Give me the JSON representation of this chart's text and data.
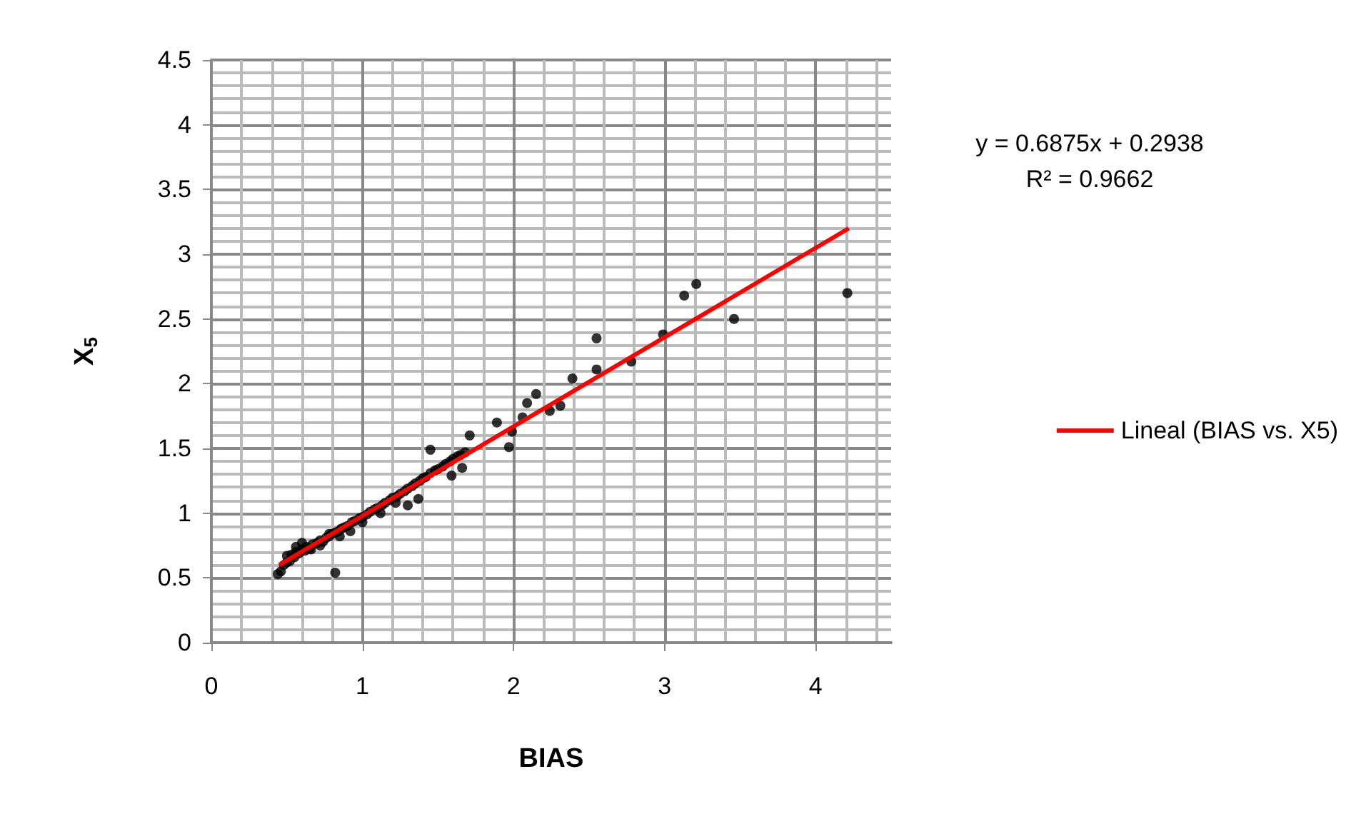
{
  "chart_data": {
    "type": "scatter",
    "xlabel": "BIAS",
    "ylabel": "X$_{5}$",
    "xlim": [
      0,
      4.5
    ],
    "ylim": [
      0,
      4.5
    ],
    "xticks": [
      0,
      1,
      2,
      3,
      4
    ],
    "yticks": [
      0,
      0.5,
      1,
      1.5,
      2,
      2.5,
      3,
      3.5,
      4,
      4.5
    ],
    "grid": true,
    "legend": "right",
    "annotations": [
      "y = 0.6875x + 0.2938",
      "R² = 0.9662"
    ],
    "series": [
      {
        "type": "scatter",
        "marker": "circle",
        "color": "#000000",
        "x": [
          0.44,
          0.46,
          0.48,
          0.5,
          0.52,
          0.53,
          0.55,
          0.56,
          0.58,
          0.6,
          0.62,
          0.63,
          0.65,
          0.67,
          0.7,
          0.72,
          0.74,
          0.76,
          0.78,
          0.8,
          0.82,
          0.84,
          0.86,
          0.88,
          0.9,
          0.93,
          0.95,
          0.98,
          1.0,
          1.03,
          1.05,
          1.08,
          1.1,
          1.13,
          1.15,
          1.18,
          1.2,
          1.23,
          1.25,
          1.28,
          1.3,
          1.33,
          1.35,
          1.38,
          1.4,
          1.42,
          1.45,
          1.48,
          1.5,
          1.53,
          1.55,
          1.58,
          1.6,
          1.63,
          1.65,
          1.68,
          0.5,
          0.56,
          0.6,
          0.66,
          0.72,
          0.78,
          0.85,
          0.92,
          1.0,
          1.12,
          1.22,
          1.3,
          1.37,
          1.45,
          1.59,
          1.66,
          1.71,
          1.97,
          1.89,
          1.99,
          2.06,
          2.09,
          2.15,
          2.24,
          2.31,
          2.39,
          2.55,
          2.55,
          2.78,
          2.99,
          3.13,
          3.21,
          3.46,
          4.21,
          0.82
        ],
        "values": [
          0.53,
          0.55,
          0.6,
          0.62,
          0.63,
          0.68,
          0.66,
          0.7,
          0.69,
          0.72,
          0.71,
          0.74,
          0.73,
          0.76,
          0.77,
          0.79,
          0.78,
          0.81,
          0.82,
          0.84,
          0.85,
          0.86,
          0.88,
          0.89,
          0.9,
          0.93,
          0.94,
          0.96,
          0.97,
          0.99,
          1.01,
          1.03,
          1.04,
          1.06,
          1.08,
          1.1,
          1.12,
          1.13,
          1.15,
          1.17,
          1.19,
          1.21,
          1.23,
          1.25,
          1.27,
          1.28,
          1.31,
          1.33,
          1.34,
          1.36,
          1.38,
          1.4,
          1.42,
          1.44,
          1.45,
          1.47,
          0.67,
          0.74,
          0.77,
          0.72,
          0.75,
          0.84,
          0.82,
          0.86,
          0.93,
          1.0,
          1.08,
          1.06,
          1.11,
          1.49,
          1.29,
          1.35,
          1.6,
          1.51,
          1.7,
          1.63,
          1.74,
          1.85,
          1.92,
          1.79,
          1.83,
          2.04,
          2.35,
          2.11,
          2.17,
          2.38,
          2.68,
          2.77,
          2.5,
          2.7,
          0.54
        ]
      },
      {
        "type": "line",
        "marker": "none",
        "name": "Lineal (BIAS vs. X5)",
        "color": "#ff0000",
        "x": [
          0.45,
          4.22
        ],
        "values": [
          0.6,
          3.2
        ]
      }
    ]
  }
}
